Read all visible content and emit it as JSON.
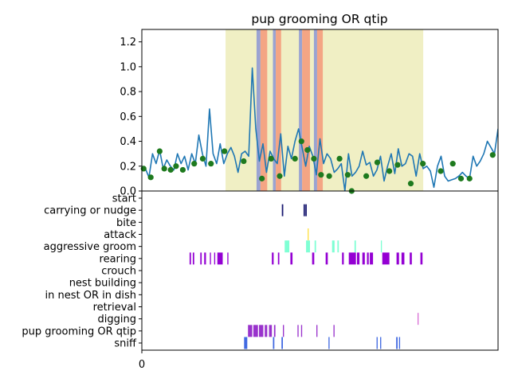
{
  "chart_data": [
    {
      "type": "line",
      "title": "pup grooming OR qtip",
      "xlabel": "",
      "ylabel": "",
      "xlim": [
        0,
        100
      ],
      "ylim": [
        0,
        1.3
      ],
      "y_ticks": [
        "0.0",
        "0.2",
        "0.4",
        "0.6",
        "0.8",
        "1.0",
        "1.2"
      ],
      "grid": false,
      "shaded_regions": [
        {
          "x0": 23.5,
          "x1": 79.0,
          "color": "#f0efc4"
        }
      ],
      "bands": [
        {
          "x0": 32.2,
          "x1": 33.3,
          "color": "#9aa3d2"
        },
        {
          "x0": 33.3,
          "x1": 35.2,
          "color": "#f4a584"
        },
        {
          "x0": 36.8,
          "x1": 37.6,
          "color": "#9aa3d2"
        },
        {
          "x0": 37.6,
          "x1": 39.1,
          "color": "#f4a584"
        },
        {
          "x0": 44.1,
          "x1": 45.0,
          "color": "#9aa3d2"
        },
        {
          "x0": 45.0,
          "x1": 47.2,
          "color": "#f4a584"
        },
        {
          "x0": 48.3,
          "x1": 49.2,
          "color": "#9aa3d2"
        },
        {
          "x0": 49.2,
          "x1": 50.8,
          "color": "#f4a584"
        }
      ],
      "series": [
        {
          "color": "#1f77b4",
          "x": [
            0,
            1,
            2,
            3,
            4,
            5,
            6,
            7,
            8,
            9,
            10,
            11,
            12,
            13,
            14,
            15,
            16,
            17,
            18,
            19,
            20,
            21,
            22,
            23,
            24,
            25,
            26,
            27,
            28,
            29,
            30,
            31,
            32,
            33,
            34,
            35,
            36,
            37,
            38,
            39,
            40,
            41,
            42,
            43,
            44,
            45,
            46,
            47,
            48,
            49,
            50,
            51,
            52,
            53,
            54,
            55,
            56,
            57,
            58,
            59,
            60,
            61,
            62,
            63,
            64,
            65,
            66,
            67,
            68,
            69,
            70,
            71,
            72,
            73,
            74,
            75,
            76,
            77,
            78,
            79,
            80,
            81,
            82,
            83,
            84,
            85,
            86,
            87,
            88,
            89,
            90,
            91,
            92,
            93,
            94,
            95,
            96,
            97,
            98,
            99,
            100
          ],
          "y": [
            0.2,
            0.18,
            0.11,
            0.3,
            0.22,
            0.33,
            0.18,
            0.25,
            0.2,
            0.17,
            0.3,
            0.22,
            0.28,
            0.17,
            0.3,
            0.22,
            0.45,
            0.3,
            0.2,
            0.66,
            0.3,
            0.22,
            0.38,
            0.22,
            0.3,
            0.35,
            0.28,
            0.15,
            0.3,
            0.32,
            0.28,
            0.99,
            0.5,
            0.24,
            0.38,
            0.15,
            0.32,
            0.26,
            0.22,
            0.46,
            0.12,
            0.36,
            0.26,
            0.4,
            0.5,
            0.35,
            0.2,
            0.36,
            0.28,
            0.13,
            0.42,
            0.22,
            0.3,
            0.26,
            0.15,
            0.18,
            0.22,
            0.0,
            0.3,
            0.12,
            0.15,
            0.2,
            0.32,
            0.21,
            0.23,
            0.12,
            0.17,
            0.28,
            0.08,
            0.2,
            0.3,
            0.14,
            0.34,
            0.2,
            0.22,
            0.3,
            0.28,
            0.12,
            0.3,
            0.18,
            0.2,
            0.16,
            0.03,
            0.2,
            0.28,
            0.12,
            0.08,
            0.09,
            0.1,
            0.12,
            0.15,
            0.12,
            0.1,
            0.28,
            0.2,
            0.24,
            0.3,
            0.4,
            0.35,
            0.3,
            0.5
          ]
        }
      ],
      "markers": {
        "color": "#1e7a1e",
        "x": [
          0.5,
          2.5,
          5.0,
          6.3,
          8.1,
          9.6,
          11.5,
          14.7,
          17.1,
          19.4,
          23.2,
          28.6,
          33.7,
          36.3,
          38.7,
          43.0,
          44.8,
          46.5,
          48.3,
          50.3,
          52.6,
          55.5,
          57.8,
          58.9,
          63.0,
          66.1,
          69.5,
          71.8,
          75.5,
          78.9,
          83.9,
          87.3,
          89.6,
          92.0,
          98.5
        ],
        "y": [
          0.18,
          0.11,
          0.32,
          0.18,
          0.17,
          0.2,
          0.17,
          0.22,
          0.26,
          0.22,
          0.32,
          0.24,
          0.1,
          0.26,
          0.12,
          0.26,
          0.4,
          0.33,
          0.26,
          0.13,
          0.12,
          0.26,
          0.13,
          0.0,
          0.12,
          0.23,
          0.16,
          0.21,
          0.06,
          0.22,
          0.16,
          0.22,
          0.1,
          0.1,
          0.29
        ]
      }
    },
    {
      "type": "event_raster",
      "xlim": [
        0,
        100
      ],
      "x_ticks": [
        "0"
      ],
      "rows": [
        {
          "label": "start",
          "color": "#808080",
          "events": []
        },
        {
          "label": "carrying or nudge",
          "color": "#191970",
          "events": [
            [
              39.3,
              39.7
            ],
            [
              45.4,
              45.8
            ],
            [
              45.9,
              46.3
            ]
          ]
        },
        {
          "label": "bite",
          "color": "#888888",
          "events": []
        },
        {
          "label": "attack",
          "color": "#ffd700",
          "events": [
            [
              46.6,
              46.8
            ]
          ]
        },
        {
          "label": "aggressive groom",
          "color": "#7fffd4",
          "events": [
            [
              40.1,
              41.4
            ],
            [
              46.1,
              47.2
            ],
            [
              48.5,
              48.9
            ],
            [
              53.4,
              54.1
            ],
            [
              54.9,
              55.3
            ],
            [
              59.7,
              60.1
            ],
            [
              67.1,
              67.4
            ]
          ]
        },
        {
          "label": "rearing",
          "color": "#9400d3",
          "events": [
            [
              13.4,
              13.8
            ],
            [
              14.3,
              14.7
            ],
            [
              16.4,
              16.8
            ],
            [
              17.5,
              18.0
            ],
            [
              19.1,
              19.4
            ],
            [
              20.3,
              20.6
            ],
            [
              21.2,
              22.7
            ],
            [
              24.0,
              24.3
            ],
            [
              36.5,
              37.0
            ],
            [
              38.2,
              38.6
            ],
            [
              41.7,
              42.3
            ],
            [
              47.8,
              48.4
            ],
            [
              51.6,
              52.2
            ],
            [
              56.2,
              56.7
            ],
            [
              58.1,
              60.1
            ],
            [
              60.4,
              61.1
            ],
            [
              61.9,
              62.6
            ],
            [
              63.2,
              63.7
            ],
            [
              64.0,
              64.9
            ],
            [
              67.5,
              69.5
            ],
            [
              71.5,
              72.2
            ],
            [
              72.9,
              73.7
            ],
            [
              75.2,
              75.8
            ],
            [
              78.2,
              78.8
            ]
          ]
        },
        {
          "label": "crouch",
          "color": "#888888",
          "events": []
        },
        {
          "label": "nest building",
          "color": "#888888",
          "events": []
        },
        {
          "label": "in nest OR in dish",
          "color": "#888888",
          "events": []
        },
        {
          "label": "retrieval",
          "color": "#888888",
          "events": []
        },
        {
          "label": "digging",
          "color": "#da70d6",
          "events": [
            [
              77.4,
              77.7
            ]
          ]
        },
        {
          "label": "pup grooming OR qtip",
          "color": "#9932cc",
          "events": [
            [
              29.8,
              31.0
            ],
            [
              31.3,
              32.6
            ],
            [
              32.9,
              34.1
            ],
            [
              34.5,
              35.2
            ],
            [
              35.7,
              36.5
            ],
            [
              37.1,
              37.5
            ],
            [
              39.6,
              39.9
            ],
            [
              43.7,
              44.0
            ],
            [
              44.7,
              45.0
            ],
            [
              49.0,
              49.3
            ],
            [
              53.8,
              54.1
            ]
          ]
        },
        {
          "label": "sniff",
          "color": "#4169e1",
          "events": [
            [
              28.7,
              29.6
            ],
            [
              36.8,
              37.2
            ],
            [
              39.2,
              39.6
            ],
            [
              52.4,
              52.7
            ],
            [
              65.9,
              66.2
            ],
            [
              66.9,
              67.2
            ],
            [
              71.4,
              71.8
            ],
            [
              72.2,
              72.5
            ]
          ]
        }
      ]
    }
  ]
}
